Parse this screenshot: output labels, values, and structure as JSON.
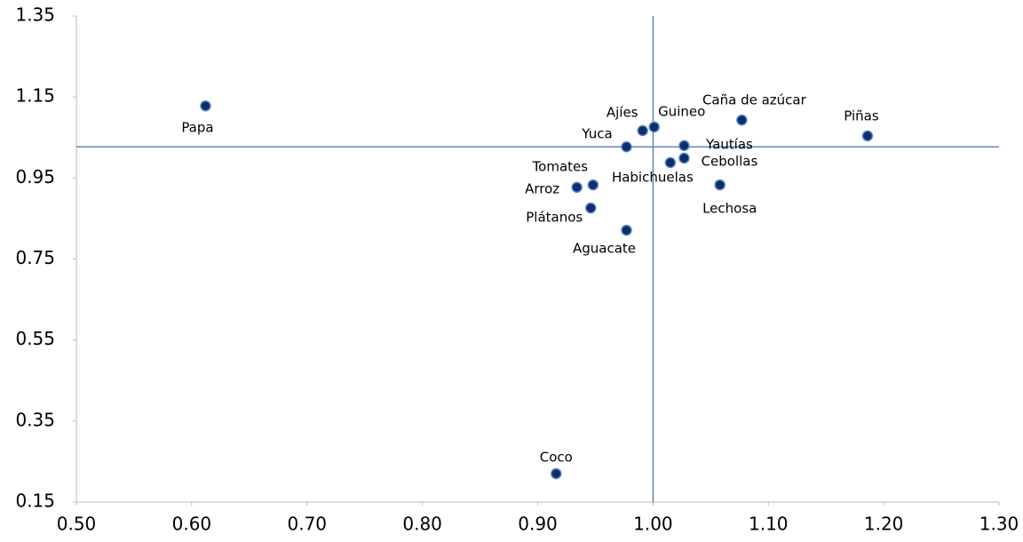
{
  "chart_data": {
    "type": "scatter",
    "points": [
      {
        "label": "Papa",
        "x": 0.612,
        "y": 1.128
      },
      {
        "label": "Ajíes",
        "x": 0.991,
        "y": 1.067
      },
      {
        "label": "Guineo",
        "x": 1.001,
        "y": 1.076
      },
      {
        "label": "Yuca",
        "x": 0.977,
        "y": 1.027
      },
      {
        "label": "Caña de azúcar",
        "x": 1.077,
        "y": 1.093
      },
      {
        "label": "Piñas",
        "x": 1.186,
        "y": 1.054
      },
      {
        "label": "Yautías",
        "x": 1.027,
        "y": 1.03
      },
      {
        "label": "Cebollas",
        "x": 1.027,
        "y": 0.999
      },
      {
        "label": "Habichuelas",
        "x": 1.015,
        "y": 0.988
      },
      {
        "label": "Lechosa",
        "x": 1.058,
        "y": 0.933
      },
      {
        "label": "Tomates",
        "x": 0.948,
        "y": 0.933
      },
      {
        "label": "Arroz",
        "x": 0.934,
        "y": 0.927
      },
      {
        "label": "Plátanos",
        "x": 0.946,
        "y": 0.876
      },
      {
        "label": "Aguacate",
        "x": 0.977,
        "y": 0.821
      },
      {
        "label": "Coco",
        "x": 0.916,
        "y": 0.22
      }
    ],
    "color": "#0d2d6b",
    "xlim": [
      0.5,
      1.3
    ],
    "ylim": [
      0.15,
      1.35
    ],
    "xticks": [
      {
        "value": 0.5,
        "label": "0.50"
      },
      {
        "value": 0.6,
        "label": "0.60"
      },
      {
        "value": 0.7,
        "label": "0.70"
      },
      {
        "value": 0.8,
        "label": "0.80"
      },
      {
        "value": 0.9,
        "label": "0.90"
      },
      {
        "value": 1.0,
        "label": "1.00"
      },
      {
        "value": 1.1,
        "label": "1.10"
      },
      {
        "value": 1.2,
        "label": "1.20"
      },
      {
        "value": 1.3,
        "label": "1.30"
      }
    ],
    "yticks": [
      0.15,
      0.35,
      0.55,
      0.75,
      0.95,
      1.15,
      1.35
    ],
    "reference_x": 1.0,
    "reference_y": 1.027,
    "reference_color": "#4a6fb5"
  }
}
